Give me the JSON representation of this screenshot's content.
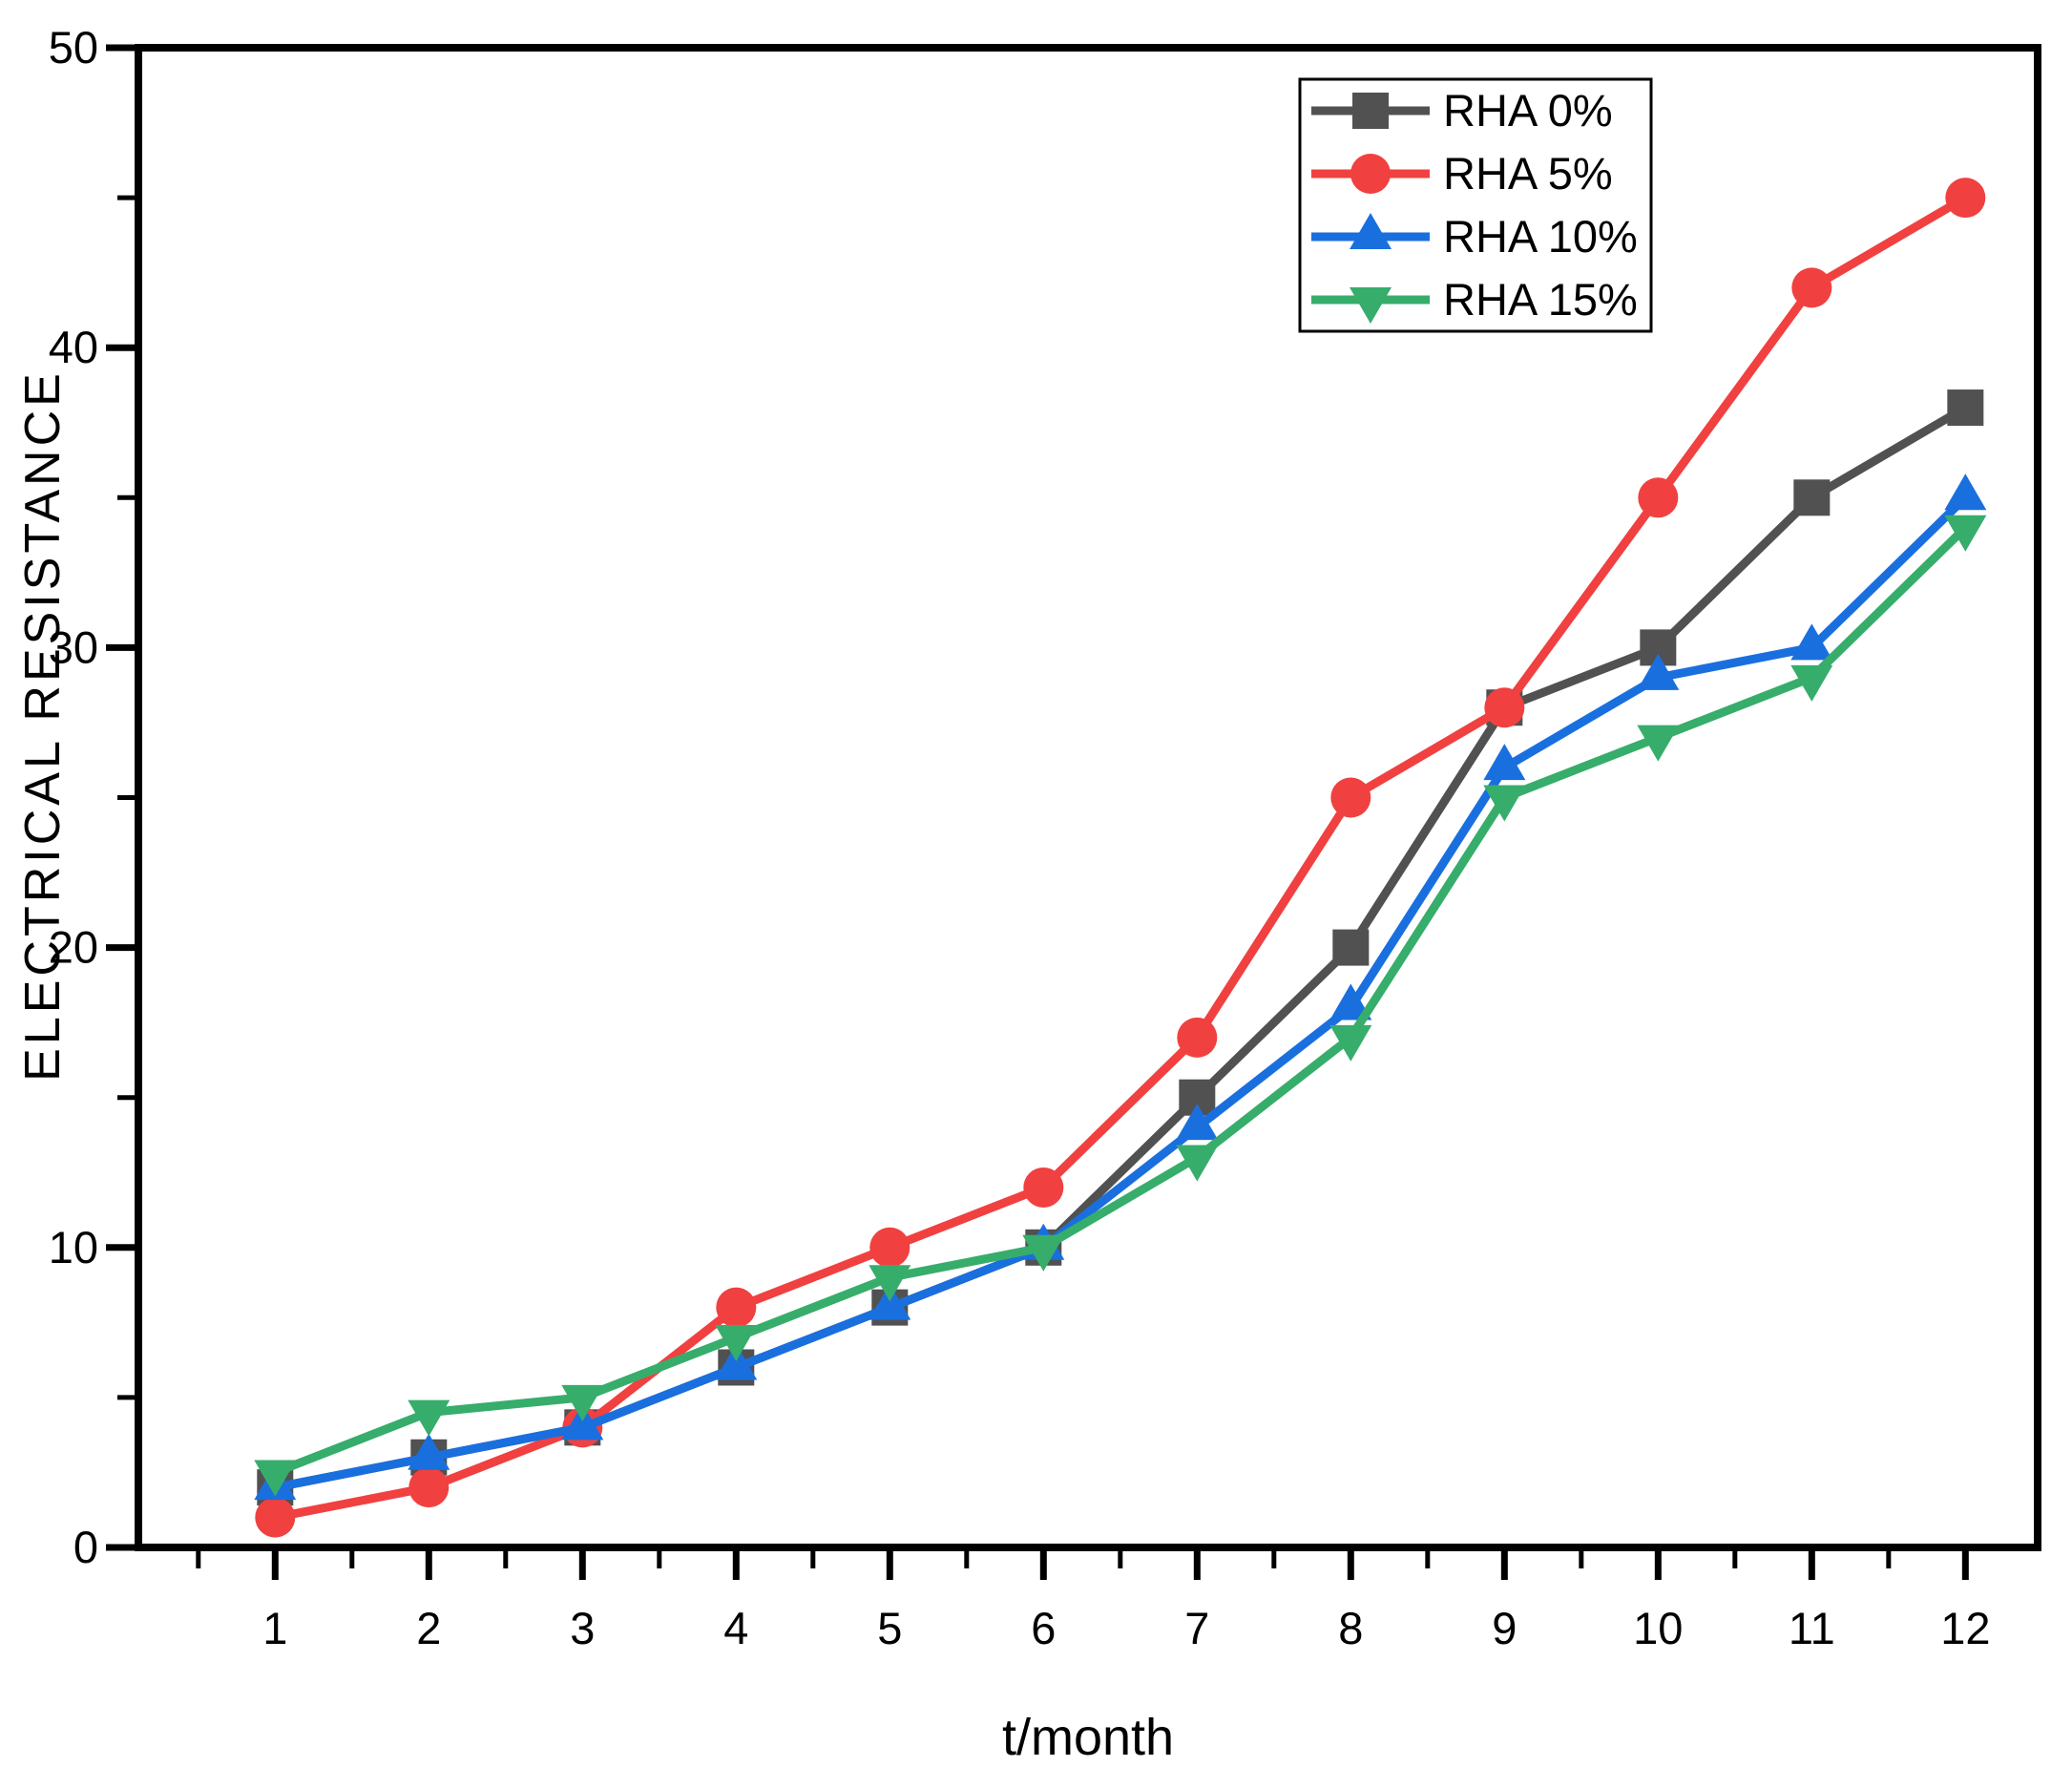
{
  "figure": {
    "background": "#ffffff",
    "frame_color": "#000000"
  },
  "chart_data": {
    "type": "line",
    "title": "",
    "xlabel": "t/month",
    "ylabel": "ELECTRICAL RESISTANCE",
    "x": [
      1,
      2,
      3,
      4,
      5,
      6,
      7,
      8,
      9,
      10,
      11,
      12
    ],
    "x_tick_labels": [
      "1",
      "2",
      "3",
      "4",
      "5",
      "6",
      "7",
      "8",
      "9",
      "10",
      "11",
      "12"
    ],
    "y_ticks": [
      0,
      10,
      20,
      30,
      40,
      50
    ],
    "y_tick_labels": [
      "0",
      "10",
      "20",
      "30",
      "40",
      "50"
    ],
    "y_minor_ticks": [
      5,
      15,
      25,
      35,
      45
    ],
    "xlim": [
      0.11,
      12.47
    ],
    "ylim": [
      0,
      50
    ],
    "grid": false,
    "legend_position": "top-right",
    "series": [
      {
        "name": "RHA 0%",
        "color": "#515151",
        "marker": "square",
        "values": [
          2,
          3,
          4,
          6,
          8,
          10,
          15,
          20,
          28,
          30,
          35,
          38
        ]
      },
      {
        "name": "RHA 5%",
        "color": "#F14040",
        "marker": "circle",
        "values": [
          1,
          2,
          4,
          8,
          10,
          12,
          17,
          25,
          28,
          35,
          42,
          45
        ]
      },
      {
        "name": "RHA 10%",
        "color": "#1A6FDF",
        "marker": "triangle-up",
        "values": [
          2,
          3,
          4,
          6,
          8,
          10,
          14,
          18,
          26,
          29,
          30,
          35
        ]
      },
      {
        "name": "RHA 15%",
        "color": "#37AD6B",
        "marker": "triangle-down",
        "values": [
          2.5,
          4.5,
          5,
          7,
          9,
          10,
          13,
          17,
          25,
          27,
          29,
          34
        ]
      }
    ],
    "legend": {
      "entries": [
        "RHA 0%",
        "RHA 5%",
        "RHA 10%",
        "RHA 15%"
      ],
      "border_color": "#000000",
      "background": "#ffffff"
    }
  }
}
